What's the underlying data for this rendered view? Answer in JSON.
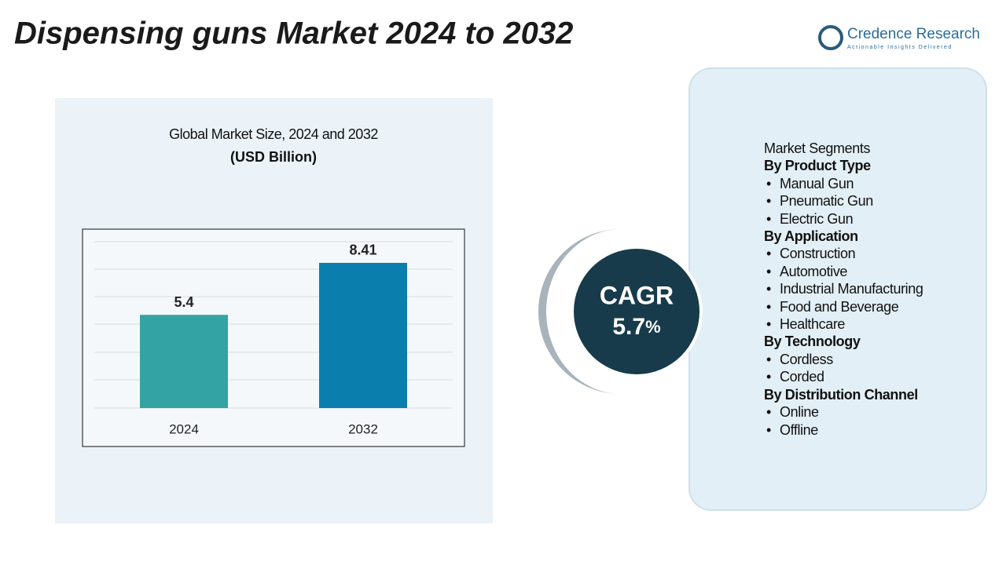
{
  "title": "Dispensing guns Market 2024 to 2032",
  "logo": {
    "name": "Credence Research",
    "tagline": "Actionable Insights Delivered"
  },
  "chart_data": {
    "type": "bar",
    "title": "Global Market Size, 2024 and 2032",
    "subtitle": "(USD Billion)",
    "categories": [
      "2024",
      "2032"
    ],
    "values": [
      5.4,
      8.41
    ],
    "colors": [
      "#33a3a3",
      "#0a7fae"
    ],
    "ylim": [
      0,
      10
    ],
    "grid": true
  },
  "cagr": {
    "label": "CAGR",
    "value": 5.7,
    "unit": "%"
  },
  "segments": {
    "title": "Market Segments",
    "groups": [
      {
        "name": "By Product Type",
        "items": [
          "Manual Gun",
          "Pneumatic Gun",
          "Electric Gun"
        ]
      },
      {
        "name": "By Application",
        "items": [
          "Construction",
          "Automotive",
          "Industrial Manufacturing",
          "Food and Beverage",
          "Healthcare"
        ]
      },
      {
        "name": "By Technology",
        "items": [
          "Cordless",
          "Corded"
        ]
      },
      {
        "name": "By Distribution Channel",
        "items": [
          "Online",
          "Offline"
        ]
      }
    ]
  }
}
